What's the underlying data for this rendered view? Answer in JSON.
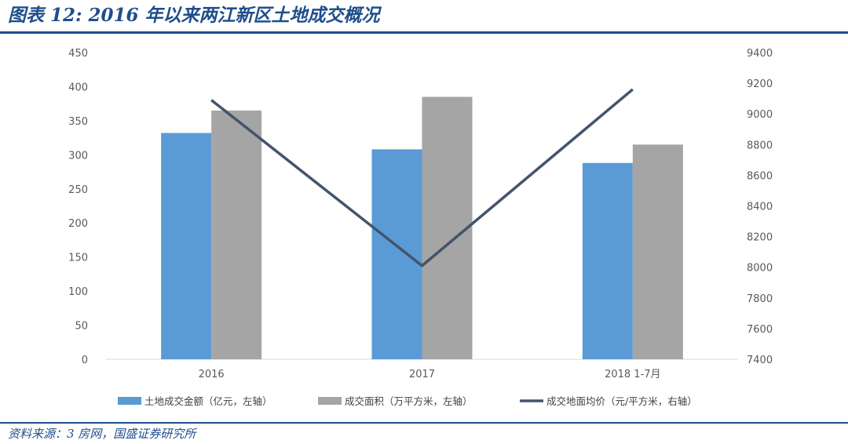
{
  "header": {
    "title": "图表 12:  2016 年以来两江新区土地成交概况"
  },
  "footer": {
    "source": "资料来源：3 房网，国盛证券研究所"
  },
  "colors": {
    "title": "#1f4e8c",
    "series_1": "#5b9bd5",
    "series_2": "#a5a5a5",
    "series_3": "#44546a"
  },
  "chart_data": {
    "type": "bar",
    "title": "",
    "categories": [
      "2016",
      "2017",
      "2018 1-7月"
    ],
    "series": [
      {
        "name": "土地成交金额（亿元，左轴）",
        "type": "bar",
        "axis": "left",
        "color": "#5b9bd5",
        "values": [
          332,
          308,
          288
        ]
      },
      {
        "name": "成交面积（万平方米，左轴）",
        "type": "bar",
        "axis": "left",
        "color": "#a5a5a5",
        "values": [
          365,
          385,
          315
        ]
      },
      {
        "name": "成交地面均价（元/平方米，右轴）",
        "type": "line",
        "axis": "right",
        "color": "#44546a",
        "values": [
          9090,
          8010,
          9160
        ]
      }
    ],
    "y_left": {
      "min": 0,
      "max": 450,
      "step": 50,
      "ticks": [
        "0",
        "50",
        "100",
        "150",
        "200",
        "250",
        "300",
        "350",
        "400",
        "450"
      ]
    },
    "y_right": {
      "min": 7400,
      "max": 9400,
      "step": 200,
      "ticks": [
        "7400",
        "7600",
        "7800",
        "8000",
        "8200",
        "8400",
        "8600",
        "8800",
        "9000",
        "9200",
        "9400"
      ]
    },
    "grid": false,
    "legend_position": "bottom"
  }
}
